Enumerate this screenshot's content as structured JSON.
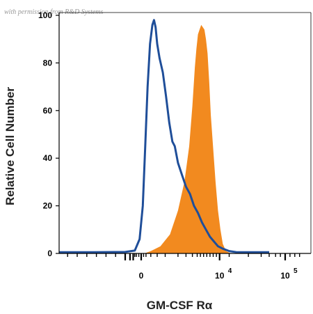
{
  "watermark": "with permission from R&D Systems",
  "chart_data": {
    "type": "area",
    "xlabel": "GM-CSF Rα",
    "ylabel": "Relative Cell Number",
    "x_tick_labels": [
      "0",
      "10",
      "10"
    ],
    "x_tick_exponents": [
      "",
      "4",
      "5"
    ],
    "y_ticks": [
      0,
      20,
      40,
      60,
      80,
      100
    ],
    "ylim": [
      0,
      100
    ],
    "grid": false,
    "legend": "none",
    "series": [
      {
        "color": "#f28a1f",
        "fill": true,
        "points": [
          [
            0,
            0
          ],
          [
            0.2,
            0
          ],
          [
            0.6,
            1
          ],
          [
            1.2,
            3
          ],
          [
            1.8,
            8
          ],
          [
            2.3,
            18
          ],
          [
            2.7,
            30
          ],
          [
            3.0,
            45
          ],
          [
            3.2,
            62
          ],
          [
            3.35,
            78
          ],
          [
            3.45,
            86
          ],
          [
            3.55,
            92
          ],
          [
            3.65,
            94
          ],
          [
            3.75,
            96
          ],
          [
            3.85,
            95
          ],
          [
            3.95,
            94
          ],
          [
            4.05,
            90
          ],
          [
            4.15,
            84
          ],
          [
            4.25,
            72
          ],
          [
            4.35,
            58
          ],
          [
            4.5,
            44
          ],
          [
            4.65,
            30
          ],
          [
            4.8,
            18
          ],
          [
            4.95,
            10
          ],
          [
            5.1,
            4
          ],
          [
            5.3,
            1
          ],
          [
            5.6,
            0
          ],
          [
            7.0,
            0
          ]
        ]
      },
      {
        "color": "#1f4e99",
        "fill": false,
        "points": [
          [
            -6.0,
            0.5
          ],
          [
            -3.0,
            0.5
          ],
          [
            -1.0,
            0.6
          ],
          [
            -0.4,
            1.2
          ],
          [
            -0.1,
            6
          ],
          [
            0.1,
            20
          ],
          [
            0.25,
            45
          ],
          [
            0.4,
            70
          ],
          [
            0.55,
            88
          ],
          [
            0.7,
            96
          ],
          [
            0.8,
            98
          ],
          [
            0.9,
            95
          ],
          [
            1.0,
            88
          ],
          [
            1.15,
            82
          ],
          [
            1.35,
            76
          ],
          [
            1.55,
            66
          ],
          [
            1.75,
            55
          ],
          [
            1.95,
            47
          ],
          [
            2.1,
            45
          ],
          [
            2.3,
            38
          ],
          [
            2.55,
            33
          ],
          [
            2.8,
            28
          ],
          [
            3.05,
            25
          ],
          [
            3.3,
            20
          ],
          [
            3.55,
            17
          ],
          [
            3.8,
            13
          ],
          [
            4.05,
            10
          ],
          [
            4.3,
            7
          ],
          [
            4.55,
            5
          ],
          [
            4.8,
            3
          ],
          [
            5.1,
            2
          ],
          [
            5.5,
            1
          ],
          [
            6.0,
            0.5
          ],
          [
            8.0,
            0.5
          ]
        ]
      }
    ]
  }
}
